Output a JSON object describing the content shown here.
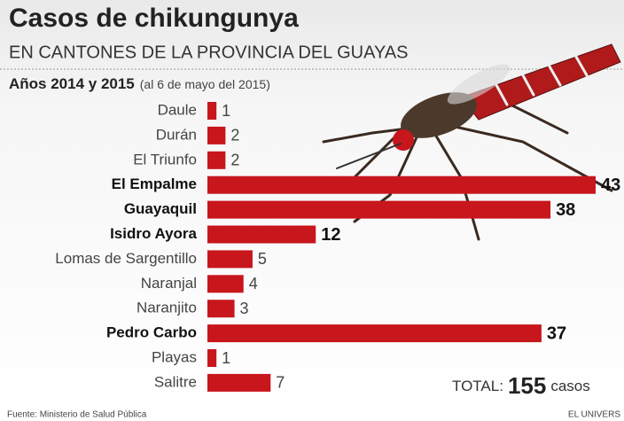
{
  "chart_data": {
    "type": "bar",
    "title": "Casos de chikungunya",
    "subtitle": "EN CANTONES DE LA PROVINCIA DEL GUAYAS",
    "period": "Años 2014 y 2015",
    "period_note": "(al 6 de mayo del 2015)",
    "categories": [
      "Daule",
      "Durán",
      "El Triunfo",
      "El Empalme",
      "Guayaquil",
      "Isidro Ayora",
      "Lomas de Sargentillo",
      "Naranjal",
      "Naranjito",
      "Pedro Carbo",
      "Playas",
      "Salitre"
    ],
    "values": [
      1,
      2,
      2,
      43,
      38,
      12,
      5,
      4,
      3,
      37,
      1,
      7
    ],
    "bold": [
      false,
      false,
      false,
      true,
      true,
      true,
      false,
      false,
      false,
      true,
      false,
      false
    ],
    "color": "#c8161d",
    "total_label": "TOTAL:",
    "total": 155,
    "total_unit": "casos",
    "source": "Fuente: Ministerio de Salud Pública",
    "credit": "EL UNIVERS"
  }
}
